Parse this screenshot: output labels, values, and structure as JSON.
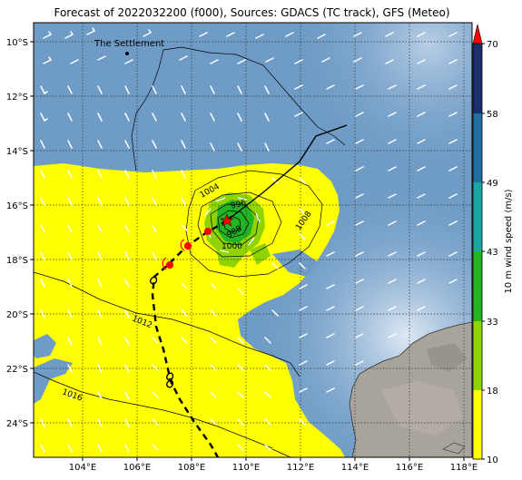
{
  "title": "Forecast of 2022032200 (f000), Sources: GDACS (TC track), GFS (Meteo)",
  "map": {
    "lon_range": [
      102.2,
      118.3
    ],
    "lat_range": [
      -25.2,
      -9.2
    ],
    "lon_ticks": [
      "104°E",
      "106°E",
      "108°E",
      "110°E",
      "112°E",
      "114°E",
      "116°E",
      "118°E"
    ],
    "lat_ticks": [
      "10°S",
      "12°S",
      "14°S",
      "16°S",
      "18°S",
      "20°S",
      "22°S",
      "24°S"
    ],
    "settlement_label": "The Settlement",
    "isobar_labels": [
      "1004",
      "996",
      "1008",
      "1000",
      "988",
      "1012",
      "1016"
    ],
    "grid": "dotted"
  },
  "colorbar": {
    "label": "10 m wind speed (m/s)",
    "ticks": [
      "70",
      "58",
      "49",
      "43",
      "33",
      "18",
      "10"
    ],
    "colors": {
      "10-18": "#ffff00",
      "18-33": "#8fd400",
      "33-43": "#22b422",
      "43-49": "#1aa5a5",
      "49-58": "#1f6fa0",
      "58-70": "#1b2e6e",
      "extend": "#ff0000"
    }
  },
  "colors": {
    "ocean": "#6f9cc6",
    "gale_zone": "#ffff00",
    "track_forecast": "#000000",
    "track_past": "#000000",
    "cyclone_marker": "#ff0000",
    "land": "#a8a39b"
  }
}
